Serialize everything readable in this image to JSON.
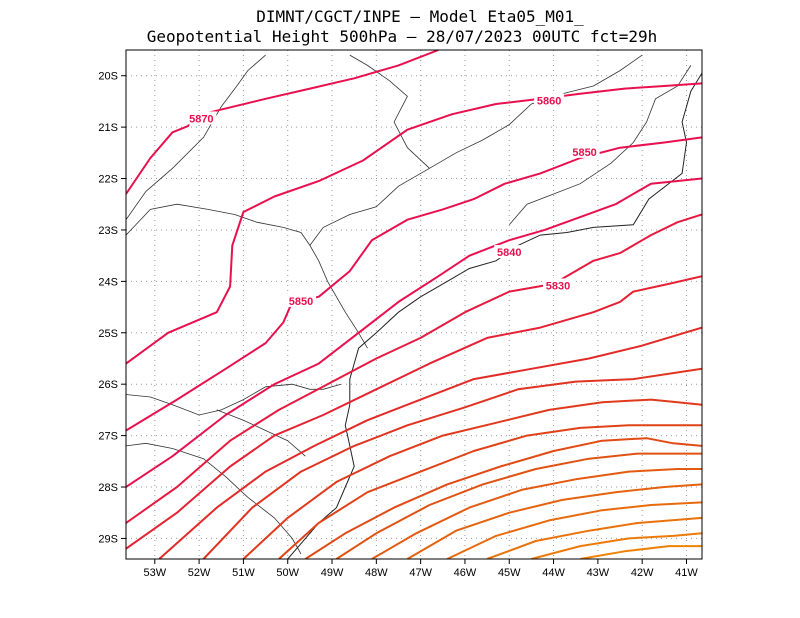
{
  "title": {
    "line1": "DIMNT/CGCT/INPE —  Model Eta05_M01_",
    "line2": "Geopotential Height 500hPa —  28/07/2023 00UTC fct=29h"
  },
  "map": {
    "lon_range": [
      -53.65,
      -40.65
    ],
    "lat_range": [
      -29.4,
      -19.5
    ],
    "lon_ticks": [
      {
        "value": -53,
        "label": "53W"
      },
      {
        "value": -52,
        "label": "52W"
      },
      {
        "value": -51,
        "label": "51W"
      },
      {
        "value": -50,
        "label": "50W"
      },
      {
        "value": -49,
        "label": "49W"
      },
      {
        "value": -48,
        "label": "48W"
      },
      {
        "value": -47,
        "label": "47W"
      },
      {
        "value": -46,
        "label": "46W"
      },
      {
        "value": -45,
        "label": "45W"
      },
      {
        "value": -44,
        "label": "44W"
      },
      {
        "value": -43,
        "label": "43W"
      },
      {
        "value": -42,
        "label": "42W"
      },
      {
        "value": -41,
        "label": "41W"
      }
    ],
    "lat_ticks": [
      {
        "value": -20,
        "label": "20S"
      },
      {
        "value": -21,
        "label": "21S"
      },
      {
        "value": -22,
        "label": "22S"
      },
      {
        "value": -23,
        "label": "23S"
      },
      {
        "value": -24,
        "label": "24S"
      },
      {
        "value": -25,
        "label": "25S"
      },
      {
        "value": -26,
        "label": "26S"
      },
      {
        "value": -27,
        "label": "27S"
      },
      {
        "value": -28,
        "label": "28S"
      },
      {
        "value": -29,
        "label": "29S"
      }
    ],
    "grid": true
  },
  "contour_labels": [
    {
      "text": "5870",
      "lon": -51.95,
      "lat": -20.85,
      "color": "#e8104e"
    },
    {
      "text": "5860",
      "lon": -44.1,
      "lat": -20.5,
      "color": "#e8104e"
    },
    {
      "text": "5850",
      "lon": -43.3,
      "lat": -21.5,
      "color": "#e8104e"
    },
    {
      "text": "5840",
      "lon": -45.0,
      "lat": -23.45,
      "color": "#e8104e"
    },
    {
      "text": "5830",
      "lon": -43.9,
      "lat": -24.1,
      "color": "#e8104e"
    },
    {
      "text": "5850",
      "lon": -49.7,
      "lat": -24.4,
      "color": "#e8104e"
    }
  ],
  "contours": [
    {
      "color": "#e8104e",
      "points": [
        [
          -53.65,
          -22.3
        ],
        [
          -53.1,
          -21.6
        ],
        [
          -52.6,
          -21.1
        ],
        [
          -52.25,
          -20.98
        ],
        [
          -52.15,
          -20.78
        ],
        [
          -51.7,
          -20.7
        ],
        [
          -50.5,
          -20.45
        ],
        [
          -49.5,
          -20.25
        ],
        [
          -48.5,
          -20.05
        ],
        [
          -47.5,
          -19.8
        ],
        [
          -46.6,
          -19.5
        ]
      ]
    },
    {
      "color": "#e8104e",
      "points": [
        [
          -53.65,
          -25.6
        ],
        [
          -52.7,
          -25.0
        ],
        [
          -51.6,
          -24.6
        ],
        [
          -51.3,
          -24.1
        ],
        [
          -51.25,
          -23.3
        ],
        [
          -51.0,
          -22.65
        ],
        [
          -50.3,
          -22.35
        ],
        [
          -49.3,
          -22.05
        ],
        [
          -48.3,
          -21.65
        ],
        [
          -47.3,
          -21.05
        ],
        [
          -46.3,
          -20.75
        ],
        [
          -45.3,
          -20.55
        ],
        [
          -44.3,
          -20.45
        ],
        [
          -43.4,
          -20.35
        ],
        [
          -42.4,
          -20.25
        ],
        [
          -41.5,
          -20.2
        ],
        [
          -40.65,
          -20.15
        ]
      ]
    },
    {
      "color": "#e8104e",
      "points": [
        [
          -53.65,
          -26.9
        ],
        [
          -52.5,
          -26.3
        ],
        [
          -51.4,
          -25.7
        ],
        [
          -50.5,
          -25.2
        ],
        [
          -50.1,
          -24.8
        ],
        [
          -49.9,
          -24.4
        ],
        [
          -49.3,
          -24.3
        ],
        [
          -48.6,
          -23.8
        ],
        [
          -48.1,
          -23.2
        ],
        [
          -47.3,
          -22.8
        ],
        [
          -46.5,
          -22.6
        ],
        [
          -45.8,
          -22.4
        ],
        [
          -45.1,
          -22.1
        ],
        [
          -44.3,
          -21.9
        ],
        [
          -43.4,
          -21.6
        ],
        [
          -42.5,
          -21.4
        ],
        [
          -41.5,
          -21.3
        ],
        [
          -40.65,
          -21.2
        ]
      ]
    },
    {
      "color": "#e8104e",
      "points": [
        [
          -53.65,
          -28.0
        ],
        [
          -52.6,
          -27.4
        ],
        [
          -51.4,
          -26.6
        ],
        [
          -50.3,
          -26.0
        ],
        [
          -49.3,
          -25.6
        ],
        [
          -48.4,
          -25.0
        ],
        [
          -47.5,
          -24.4
        ],
        [
          -46.6,
          -23.9
        ],
        [
          -45.9,
          -23.5
        ],
        [
          -45.0,
          -23.2
        ],
        [
          -44.2,
          -23.0
        ],
        [
          -43.4,
          -22.75
        ],
        [
          -42.6,
          -22.5
        ],
        [
          -41.8,
          -22.1
        ],
        [
          -40.65,
          -22.0
        ]
      ]
    },
    {
      "color": "#e61a40",
      "points": [
        [
          -53.65,
          -28.7
        ],
        [
          -52.5,
          -28.0
        ],
        [
          -51.3,
          -27.1
        ],
        [
          -50.2,
          -26.5
        ],
        [
          -49.1,
          -26.0
        ],
        [
          -48.0,
          -25.5
        ],
        [
          -47.0,
          -25.1
        ],
        [
          -46.0,
          -24.6
        ],
        [
          -45.0,
          -24.2
        ],
        [
          -44.0,
          -24.05
        ],
        [
          -43.1,
          -23.6
        ],
        [
          -42.5,
          -23.45
        ],
        [
          -41.8,
          -23.1
        ],
        [
          -41.2,
          -22.85
        ],
        [
          -40.65,
          -22.7
        ]
      ]
    },
    {
      "color": "#e42233",
      "points": [
        [
          -53.65,
          -29.2
        ],
        [
          -52.5,
          -28.5
        ],
        [
          -51.3,
          -27.6
        ],
        [
          -50.3,
          -27.0
        ],
        [
          -49.2,
          -26.6
        ],
        [
          -48.0,
          -26.1
        ],
        [
          -46.8,
          -25.6
        ],
        [
          -45.5,
          -25.1
        ],
        [
          -44.3,
          -24.9
        ],
        [
          -43.1,
          -24.6
        ],
        [
          -42.5,
          -24.4
        ],
        [
          -42.2,
          -24.2
        ],
        [
          -41.4,
          -24.05
        ],
        [
          -40.65,
          -23.9
        ]
      ]
    },
    {
      "color": "#e22a28",
      "points": [
        [
          -52.9,
          -29.4
        ],
        [
          -51.6,
          -28.4
        ],
        [
          -50.5,
          -27.7
        ],
        [
          -49.4,
          -27.2
        ],
        [
          -48.2,
          -26.7
        ],
        [
          -47.0,
          -26.3
        ],
        [
          -45.8,
          -25.9
        ],
        [
          -44.5,
          -25.7
        ],
        [
          -43.2,
          -25.5
        ],
        [
          -42.0,
          -25.25
        ],
        [
          -40.65,
          -24.9
        ]
      ]
    },
    {
      "color": "#e03320",
      "points": [
        [
          -51.9,
          -29.4
        ],
        [
          -50.8,
          -28.4
        ],
        [
          -49.7,
          -27.7
        ],
        [
          -48.5,
          -27.2
        ],
        [
          -47.3,
          -26.8
        ],
        [
          -46.0,
          -26.45
        ],
        [
          -44.8,
          -26.1
        ],
        [
          -43.5,
          -25.95
        ],
        [
          -42.2,
          -25.9
        ],
        [
          -40.65,
          -25.7
        ]
      ]
    },
    {
      "color": "#e03a1c",
      "points": [
        [
          -51.0,
          -29.4
        ],
        [
          -50.0,
          -28.6
        ],
        [
          -48.9,
          -27.9
        ],
        [
          -47.7,
          -27.4
        ],
        [
          -46.5,
          -27.0
        ],
        [
          -45.3,
          -26.75
        ],
        [
          -44.1,
          -26.5
        ],
        [
          -42.9,
          -26.35
        ],
        [
          -41.8,
          -26.3
        ],
        [
          -41.2,
          -26.35
        ],
        [
          -40.65,
          -26.4
        ]
      ]
    },
    {
      "color": "#e04218",
      "points": [
        [
          -50.2,
          -29.4
        ],
        [
          -49.3,
          -28.7
        ],
        [
          -48.2,
          -28.1
        ],
        [
          -47.0,
          -27.7
        ],
        [
          -45.8,
          -27.3
        ],
        [
          -44.6,
          -27.0
        ],
        [
          -43.4,
          -26.85
        ],
        [
          -42.3,
          -26.8
        ],
        [
          -41.4,
          -26.8
        ],
        [
          -40.65,
          -26.8
        ]
      ]
    },
    {
      "color": "#e04a14",
      "points": [
        [
          -49.6,
          -29.4
        ],
        [
          -48.7,
          -28.9
        ],
        [
          -47.6,
          -28.4
        ],
        [
          -46.4,
          -27.95
        ],
        [
          -45.2,
          -27.6
        ],
        [
          -44.0,
          -27.3
        ],
        [
          -42.9,
          -27.1
        ],
        [
          -41.9,
          -27.05
        ],
        [
          -41.3,
          -27.15
        ],
        [
          -40.65,
          -27.2
        ]
      ]
    },
    {
      "color": "#e05212",
      "points": [
        [
          -48.9,
          -29.4
        ],
        [
          -48.0,
          -28.9
        ],
        [
          -46.8,
          -28.35
        ],
        [
          -45.6,
          -27.95
        ],
        [
          -44.4,
          -27.65
        ],
        [
          -43.2,
          -27.45
        ],
        [
          -42.1,
          -27.35
        ],
        [
          -41.1,
          -27.35
        ],
        [
          -40.65,
          -27.35
        ]
      ]
    },
    {
      "color": "#e35a10",
      "points": [
        [
          -48.1,
          -29.4
        ],
        [
          -47.1,
          -28.9
        ],
        [
          -45.9,
          -28.4
        ],
        [
          -44.7,
          -28.05
        ],
        [
          -43.5,
          -27.85
        ],
        [
          -42.3,
          -27.7
        ],
        [
          -41.2,
          -27.65
        ],
        [
          -40.65,
          -27.65
        ]
      ]
    },
    {
      "color": "#e5620e",
      "points": [
        [
          -47.3,
          -29.4
        ],
        [
          -46.2,
          -28.85
        ],
        [
          -45.0,
          -28.5
        ],
        [
          -43.8,
          -28.25
        ],
        [
          -42.6,
          -28.1
        ],
        [
          -41.5,
          -28.0
        ],
        [
          -40.65,
          -27.95
        ]
      ]
    },
    {
      "color": "#e86a0c",
      "points": [
        [
          -46.4,
          -29.4
        ],
        [
          -45.3,
          -28.95
        ],
        [
          -44.1,
          -28.65
        ],
        [
          -42.9,
          -28.45
        ],
        [
          -41.8,
          -28.35
        ],
        [
          -40.65,
          -28.3
        ]
      ]
    },
    {
      "color": "#ea720a",
      "points": [
        [
          -45.5,
          -29.4
        ],
        [
          -44.4,
          -29.05
        ],
        [
          -43.2,
          -28.85
        ],
        [
          -42.1,
          -28.7
        ],
        [
          -40.65,
          -28.6
        ]
      ]
    },
    {
      "color": "#ec7a08",
      "points": [
        [
          -44.5,
          -29.4
        ],
        [
          -43.4,
          -29.15
        ],
        [
          -42.3,
          -29.0
        ],
        [
          -41.3,
          -28.95
        ],
        [
          -40.65,
          -28.9
        ]
      ]
    },
    {
      "color": "#ee8206",
      "points": [
        [
          -43.4,
          -29.4
        ],
        [
          -42.4,
          -29.25
        ],
        [
          -41.4,
          -29.15
        ],
        [
          -40.65,
          -29.15
        ]
      ]
    }
  ],
  "borders": [
    [
      [
        -53.65,
        -22.8
      ],
      [
        -53.2,
        -22.25
      ],
      [
        -52.6,
        -21.8
      ],
      [
        -51.9,
        -21.2
      ],
      [
        -51.5,
        -20.6
      ],
      [
        -51.15,
        -20.2
      ],
      [
        -50.9,
        -19.9
      ],
      [
        -50.5,
        -19.6
      ]
    ],
    [
      [
        -53.65,
        -23.1
      ],
      [
        -53.1,
        -22.6
      ],
      [
        -52.5,
        -22.5
      ],
      [
        -51.8,
        -22.6
      ],
      [
        -51.2,
        -22.7
      ],
      [
        -50.7,
        -22.85
      ],
      [
        -50.1,
        -22.95
      ],
      [
        -49.7,
        -23.05
      ],
      [
        -49.5,
        -23.3
      ],
      [
        -49.3,
        -23.6
      ],
      [
        -49.1,
        -24.0
      ],
      [
        -48.7,
        -24.6
      ],
      [
        -48.4,
        -25.0
      ],
      [
        -48.2,
        -25.3
      ]
    ],
    [
      [
        -49.5,
        -23.3
      ],
      [
        -49.2,
        -22.95
      ],
      [
        -48.6,
        -22.7
      ],
      [
        -48.0,
        -22.55
      ],
      [
        -47.5,
        -22.15
      ],
      [
        -46.8,
        -21.8
      ],
      [
        -46.2,
        -21.5
      ],
      [
        -45.6,
        -21.25
      ],
      [
        -45.0,
        -20.95
      ],
      [
        -44.5,
        -20.55
      ],
      [
        -43.8,
        -20.35
      ],
      [
        -43.1,
        -20.2
      ],
      [
        -42.5,
        -19.9
      ],
      [
        -42.0,
        -19.6
      ]
    ],
    [
      [
        -46.8,
        -21.8
      ],
      [
        -47.3,
        -21.4
      ],
      [
        -47.6,
        -20.9
      ],
      [
        -47.3,
        -20.4
      ],
      [
        -47.7,
        -20.1
      ],
      [
        -48.2,
        -19.8
      ],
      [
        -48.6,
        -19.6
      ]
    ],
    [
      [
        -45.0,
        -22.9
      ],
      [
        -44.6,
        -22.5
      ],
      [
        -44.0,
        -22.3
      ],
      [
        -43.4,
        -22.1
      ],
      [
        -42.7,
        -21.7
      ],
      [
        -42.2,
        -21.3
      ],
      [
        -41.9,
        -20.9
      ],
      [
        -41.7,
        -20.45
      ],
      [
        -41.2,
        -20.2
      ],
      [
        -40.9,
        -19.8
      ]
    ],
    [
      [
        -53.65,
        -26.2
      ],
      [
        -53.1,
        -26.25
      ],
      [
        -52.6,
        -26.4
      ],
      [
        -52.0,
        -26.6
      ],
      [
        -51.5,
        -26.5
      ],
      [
        -51.0,
        -26.3
      ],
      [
        -50.5,
        -26.05
      ],
      [
        -49.9,
        -26.0
      ],
      [
        -49.5,
        -26.1
      ],
      [
        -49.2,
        -26.1
      ],
      [
        -48.8,
        -26.0
      ]
    ],
    [
      [
        -53.65,
        -27.2
      ],
      [
        -53.2,
        -27.15
      ],
      [
        -52.6,
        -27.25
      ],
      [
        -51.9,
        -27.45
      ],
      [
        -51.4,
        -27.8
      ],
      [
        -50.9,
        -28.2
      ],
      [
        -50.3,
        -28.6
      ],
      [
        -49.9,
        -29.0
      ],
      [
        -49.7,
        -29.3
      ]
    ],
    [
      [
        -51.6,
        -26.5
      ],
      [
        -51.0,
        -26.7
      ],
      [
        -50.5,
        -26.9
      ],
      [
        -50.0,
        -27.1
      ],
      [
        -49.6,
        -27.4
      ]
    ]
  ],
  "coastline": [
    [
      [
        -40.65,
        -19.95
      ],
      [
        -40.9,
        -20.3
      ],
      [
        -41.1,
        -20.9
      ],
      [
        -41.0,
        -21.3
      ],
      [
        -41.1,
        -21.9
      ],
      [
        -41.85,
        -22.4
      ],
      [
        -42.2,
        -22.9
      ],
      [
        -43.1,
        -22.95
      ],
      [
        -43.7,
        -23.05
      ],
      [
        -44.3,
        -23.1
      ],
      [
        -44.8,
        -23.3
      ],
      [
        -45.3,
        -23.6
      ],
      [
        -45.9,
        -23.75
      ],
      [
        -46.4,
        -24.0
      ],
      [
        -47.0,
        -24.3
      ],
      [
        -47.5,
        -24.6
      ],
      [
        -48.0,
        -25.0
      ],
      [
        -48.4,
        -25.3
      ],
      [
        -48.5,
        -25.6
      ],
      [
        -48.6,
        -25.9
      ],
      [
        -48.6,
        -26.4
      ],
      [
        -48.7,
        -26.8
      ],
      [
        -48.6,
        -27.2
      ],
      [
        -48.5,
        -27.6
      ],
      [
        -48.7,
        -28.0
      ],
      [
        -48.9,
        -28.4
      ],
      [
        -49.3,
        -28.7
      ],
      [
        -49.8,
        -29.2
      ],
      [
        -50.0,
        -29.4
      ]
    ]
  ]
}
